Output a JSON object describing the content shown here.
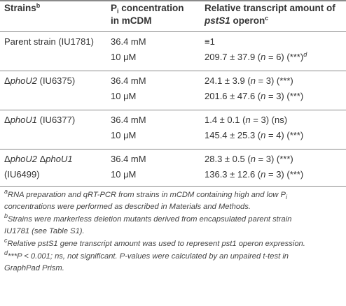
{
  "header": {
    "strains": "Strains",
    "strains_sup": "b",
    "pi_p": "P",
    "pi_i": "i",
    "pi_rest": " concentration",
    "pi_line2": "in mCDM",
    "rel_line1": "Relative transcript amount of",
    "rel_gene": "pstS1",
    "rel_operon": " operon",
    "rel_sup": "c"
  },
  "rows": [
    {
      "strain_a": "Parent strain (IU1781)",
      "c1": "36.4 mM",
      "v1a": "≡1",
      "v1b": "",
      "v1c": "",
      "c2": "10 μM",
      "v2a": "209.7 ± 37.9 (",
      "v2b": "n",
      "v2c": " = 6) (***)",
      "v2sup": "d"
    },
    {
      "strain_a": "Δ",
      "strain_b": "phoU2",
      "strain_c": " (IU6375)",
      "c1": "36.4 mM",
      "v1a": "24.1 ± 3.9 (",
      "v1b": "n",
      "v1c": " = 3) (***)",
      "c2": "10 μM",
      "v2a": "201.6 ± 47.6 (",
      "v2b": "n",
      "v2c": " = 3) (***)"
    },
    {
      "strain_a": "Δ",
      "strain_b": "phoU1",
      "strain_c": " (IU6377)",
      "c1": "36.4 mM",
      "v1a": "1.4 ± 0.1 (",
      "v1b": "n",
      "v1c": " = 3) (ns)",
      "c2": "10 μM",
      "v2a": "145.4 ± 25.3 (",
      "v2b": "n",
      "v2c": " = 4) (***)"
    },
    {
      "strain_a": "Δ",
      "strain_b": "phoU2",
      "strain_c": " Δ",
      "strain_d": "phoU1",
      "strain_e": "(IU6499)",
      "c1": "36.4 mM",
      "v1a": "28.3 ± 0.5 (",
      "v1b": "n",
      "v1c": " = 3) (***)",
      "c2": "10 μM",
      "v2a": "136.3 ± 12.6 (",
      "v2b": "n",
      "v2c": " = 3) (***)"
    }
  ],
  "footnotes": [
    {
      "mark": "a",
      "text_a": "RNA preparation and qRT-PCR from strains in mCDM containing high and low P",
      "text_sub": "i",
      "text_b": "concentrations were performed as described in Materials and Methods."
    },
    {
      "mark": "b",
      "text_a": "Strains were markerless deletion mutants derived from encapsulated parent strain",
      "text_b": "IU1781 (see Table S1)."
    },
    {
      "mark": "c",
      "text_a": "Relative pstS1 gene transcript amount was used to represent pst1 operon expression."
    },
    {
      "mark": "d",
      "text_a": "***P < 0.001; ns, not significant. P-values were calculated by an unpaired t-test in",
      "text_b": "GraphPad Prism."
    }
  ]
}
